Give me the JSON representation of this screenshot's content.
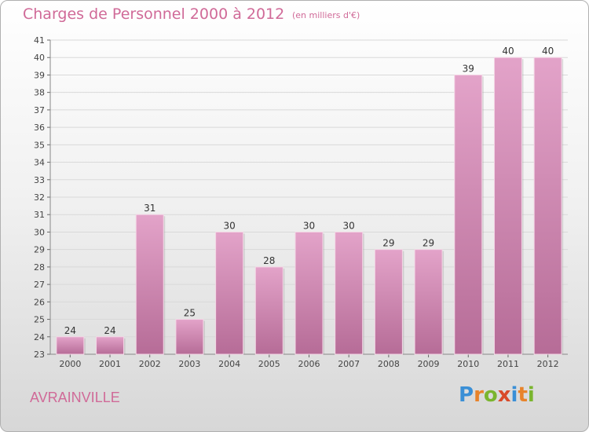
{
  "header": {
    "title": "Charges de Personnel 2000 à 2012",
    "subtitle": "(en milliers d'€)"
  },
  "footer": {
    "city": "AVRAINVILLE",
    "logo_text": "Proxiti",
    "logo_letters": [
      {
        "ch": "P",
        "color": "#3a8fd6"
      },
      {
        "ch": "r",
        "color": "#e8832a"
      },
      {
        "ch": "o",
        "color": "#7ab52e"
      },
      {
        "ch": "x",
        "color": "#d94a2a"
      },
      {
        "ch": "i",
        "color": "#3a8fd6"
      },
      {
        "ch": "t",
        "color": "#e8832a"
      },
      {
        "ch": "i",
        "color": "#7ab52e"
      }
    ]
  },
  "colors": {
    "title": "#d06a98",
    "bar_top": "#e3a3c9",
    "bar_bottom": "#b66c97",
    "grid": "#d9d9d9"
  },
  "chart_data": {
    "type": "bar",
    "categories": [
      "2000",
      "2001",
      "2002",
      "2003",
      "2004",
      "2005",
      "2006",
      "2007",
      "2008",
      "2009",
      "2010",
      "2011",
      "2012"
    ],
    "values": [
      24,
      24,
      31,
      25,
      30,
      28,
      30,
      30,
      29,
      29,
      39,
      40,
      40
    ],
    "ylim": [
      23,
      41
    ],
    "yticks": [
      23,
      24,
      25,
      26,
      27,
      28,
      29,
      30,
      31,
      32,
      33,
      34,
      35,
      36,
      37,
      38,
      39,
      40,
      41
    ],
    "grid": true
  }
}
